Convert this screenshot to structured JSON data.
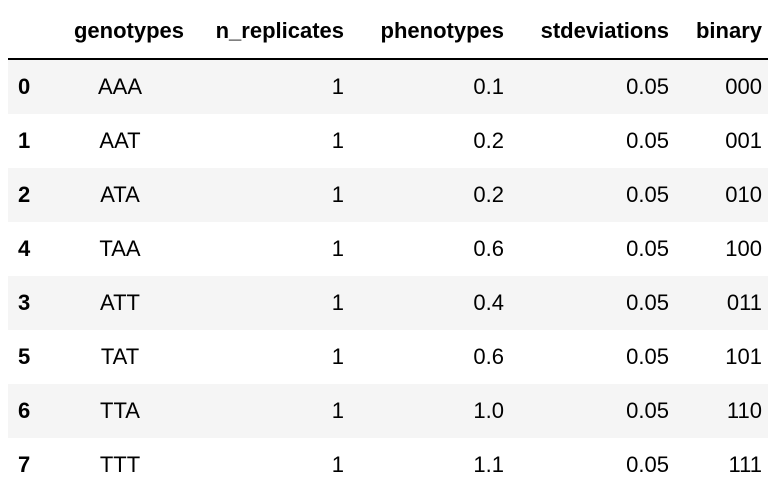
{
  "table": {
    "columns": [
      "",
      "genotypes",
      "n_replicates",
      "phenotypes",
      "stdeviations",
      "binary"
    ],
    "rows": [
      {
        "index": "0",
        "genotypes": "AAA",
        "n_replicates": "1",
        "phenotypes": "0.1",
        "stdeviations": "0.05",
        "binary": "000"
      },
      {
        "index": "1",
        "genotypes": "AAT",
        "n_replicates": "1",
        "phenotypes": "0.2",
        "stdeviations": "0.05",
        "binary": "001"
      },
      {
        "index": "2",
        "genotypes": "ATA",
        "n_replicates": "1",
        "phenotypes": "0.2",
        "stdeviations": "0.05",
        "binary": "010"
      },
      {
        "index": "4",
        "genotypes": "TAA",
        "n_replicates": "1",
        "phenotypes": "0.6",
        "stdeviations": "0.05",
        "binary": "100"
      },
      {
        "index": "3",
        "genotypes": "ATT",
        "n_replicates": "1",
        "phenotypes": "0.4",
        "stdeviations": "0.05",
        "binary": "011"
      },
      {
        "index": "5",
        "genotypes": "TAT",
        "n_replicates": "1",
        "phenotypes": "0.6",
        "stdeviations": "0.05",
        "binary": "101"
      },
      {
        "index": "6",
        "genotypes": "TTA",
        "n_replicates": "1",
        "phenotypes": "1.0",
        "stdeviations": "0.05",
        "binary": "110"
      },
      {
        "index": "7",
        "genotypes": "TTT",
        "n_replicates": "1",
        "phenotypes": "1.1",
        "stdeviations": "0.05",
        "binary": "111"
      }
    ]
  }
}
